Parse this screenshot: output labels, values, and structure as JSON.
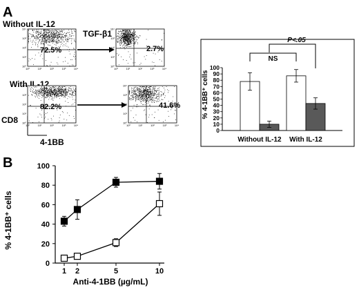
{
  "figure": {
    "panel_a_label": "A",
    "panel_b_label": "B"
  },
  "flow": {
    "row1_label": "Without IL-12",
    "row2_label": "With IL-12",
    "arrow_label": "TGF-β1",
    "y_axis_label": "CD8",
    "x_axis_label": "4-1BB",
    "tick_labels": [
      "10⁰",
      "10¹",
      "10²",
      "10³",
      "10⁴"
    ],
    "plots": [
      {
        "percent": "72.5%"
      },
      {
        "percent": "2.7%"
      },
      {
        "percent": "82.2%"
      },
      {
        "percent": "41.6%"
      }
    ]
  },
  "chart_data": [
    {
      "type": "bar",
      "title": "",
      "xlabel": "",
      "ylabel": "% 4-1BB⁺ cells",
      "ylim": [
        0,
        100
      ],
      "yticks": [
        0,
        10,
        20,
        30,
        40,
        50,
        60,
        70,
        80,
        90,
        100
      ],
      "categories": [
        "Without IL-12",
        "With IL-12"
      ],
      "series": [
        {
          "values": [
            78,
            87
          ],
          "errors": [
            14,
            10
          ],
          "color": "#ffffff"
        },
        {
          "values": [
            10,
            43
          ],
          "errors": [
            5,
            9
          ],
          "color": "#595959"
        }
      ],
      "annotations": [
        {
          "text": "NS",
          "between": [
            "Without IL-12",
            "With IL-12"
          ],
          "series": "open"
        },
        {
          "text": "P<.05",
          "between": [
            "Without IL-12",
            "With IL-12"
          ],
          "series": "filled"
        }
      ],
      "grid": false,
      "legend": "none"
    },
    {
      "type": "line",
      "title": "",
      "xlabel": "Anti-4-1BB (µg/mL)",
      "ylabel": "% 4-1BB⁺ cells",
      "ylim": [
        0,
        100
      ],
      "yticks": [
        0,
        20,
        40,
        60,
        80,
        100
      ],
      "x": [
        1,
        2,
        5,
        10
      ],
      "series": [
        {
          "values": [
            43,
            55,
            83,
            84
          ],
          "errors": [
            5,
            10,
            5,
            8
          ],
          "marker": "filled-square"
        },
        {
          "values": [
            5,
            7,
            21,
            61
          ],
          "errors": [
            1,
            1,
            4,
            12
          ],
          "marker": "open-square"
        }
      ],
      "grid": false,
      "legend": "none"
    }
  ]
}
